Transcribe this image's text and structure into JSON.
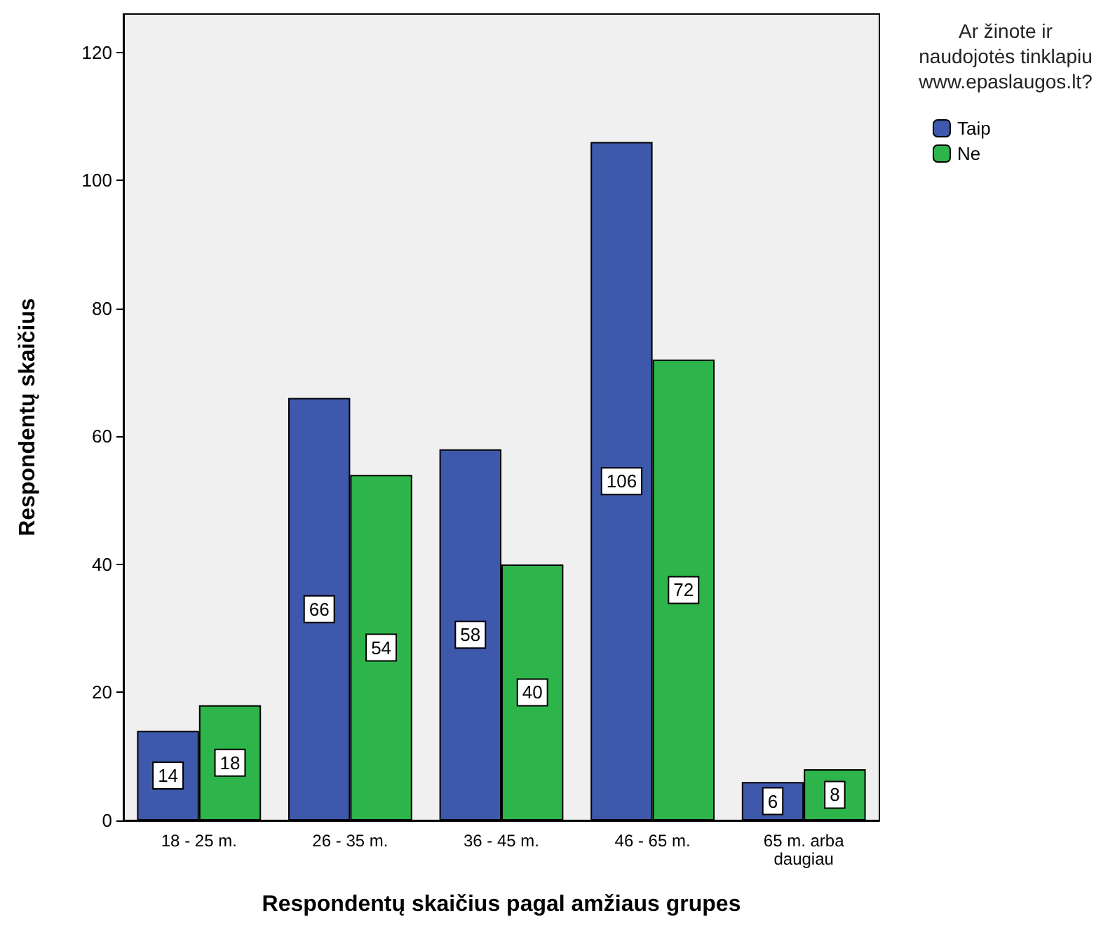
{
  "chart_data": {
    "type": "bar",
    "xlabel": "Respondentų skaičius pagal amžiaus grupes",
    "ylabel": "Respondentų skaičius",
    "legend_title": "Ar žinote ir\nnaudojotės tinklapiu\nwww.epaslaugos.lt?",
    "categories": [
      "18 - 25 m.",
      "26 - 35 m.",
      "36 - 45 m.",
      "46 - 65 m.",
      "65 m. arba\ndaugiau"
    ],
    "series": [
      {
        "name": "Taip",
        "color": "#3e58ac",
        "values": [
          14,
          66,
          58,
          106,
          6
        ]
      },
      {
        "name": "Ne",
        "color": "#2db44a",
        "values": [
          18,
          54,
          40,
          72,
          8
        ]
      }
    ],
    "ylim": [
      0,
      126
    ],
    "yticks": [
      0,
      20,
      40,
      60,
      80,
      100,
      120
    ],
    "grid": false,
    "legend": "top right",
    "data_labels": true
  }
}
